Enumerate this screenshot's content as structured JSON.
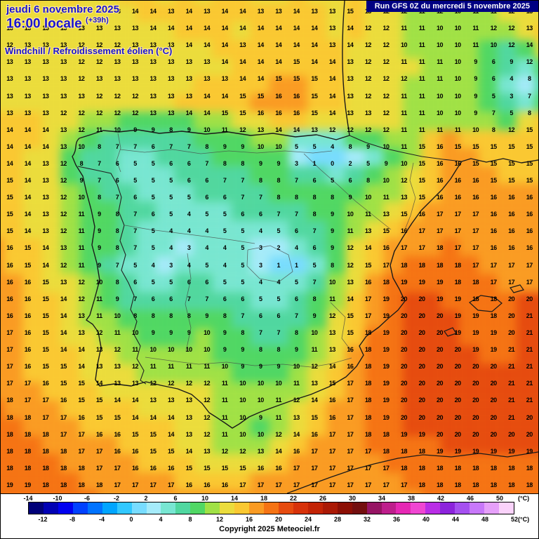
{
  "header": {
    "date_line": "jeudi 6 novembre 2025",
    "time_line": "16:00 locale",
    "run_offset": "(+39h)",
    "parameter_line": "Windchill / Refroidissement éolien (°C)",
    "run_info": "Run GFS 0Z du mercredi 5 novembre 2025"
  },
  "footer": {
    "copyright": "Copyright 2025 Meteociel.fr"
  },
  "colors": {
    "title_blue": "#1a14d2",
    "run_banner_bg": "#000082",
    "run_banner_text": "#ffffff"
  },
  "scale": {
    "min": -14,
    "max": 52,
    "step": 2,
    "unit": "(°C)",
    "top_labels": [
      "-14",
      "-10",
      "-6",
      "-2",
      "2",
      "6",
      "10",
      "14",
      "18",
      "22",
      "26",
      "30",
      "34",
      "38",
      "42",
      "46",
      "50"
    ],
    "bottom_labels": [
      "-12",
      "-8",
      "-4",
      "0",
      "4",
      "8",
      "12",
      "16",
      "20",
      "24",
      "28",
      "32",
      "36",
      "40",
      "44",
      "48",
      "52"
    ],
    "colors": [
      "#000078",
      "#0000b4",
      "#0000f0",
      "#0041ff",
      "#0073ff",
      "#00a5ff",
      "#32c8ff",
      "#78dcff",
      "#a5ebfa",
      "#78e6d2",
      "#50d7a0",
      "#50d764",
      "#a0e146",
      "#ebdc3c",
      "#fac832",
      "#fa9b23",
      "#f57314",
      "#e64b0f",
      "#d7320a",
      "#c32305",
      "#aa1905",
      "#8c0f05",
      "#730f0f",
      "#961464",
      "#be1e8c",
      "#e628b4",
      "#f046d2",
      "#b92de6",
      "#8c23dc",
      "#a550f0",
      "#c878fa",
      "#e6a0fa",
      "#fad2fa"
    ]
  },
  "grid": {
    "cols": 30,
    "rows": 29,
    "values": [
      "13 13 14 13 14 13 13 14 14 13 14 13 14 14 13 13 14 13 13 15 13 12 12 11 12 10 11 11 12 13",
      "13 13 13 13 13 13 13 13 14 14 14 14 14 14 14 14 14 14 13 14 12 12 11 11 10 10 11 12 12 13",
      "12 13 13 13 12 12 12 13 13 13 14 14 14 13 14 14 14 14 13 14 12 12 10 11 10 10 11 10 12 14",
      "13 13 13 13 12 12 13 13 13 13 13 13 14 14 14 14 15 14 14 13 12 12 11 11 11 10 9 6 9 12",
      "13 13 13 13 12 13 13 13 13 13 13 13 13 14 14 15 15 15 14 13 12 12 12 11 11 10 9 6 4 8",
      "13 13 13 13 13 12 12 12 13 13 13 14 14 15 15 16 16 15 14 13 12 12 11 11 10 10 9 5 3 7",
      "13 13 13 12 12 12 12 12 13 13 14 14 15 15 16 16 16 15 14 13 13 12 11 11 10 10 9 7 5 8",
      "14 14 14 13 12 11 10 9 9 8 9 10 11 12 13 14 14 13 12 12 12 12 11 11 11 11 10 8 12 15",
      "14 14 14 13 10 8 7 7 6 7 7 8 9 9 10 10 5 5 4 8 9 10 11 15 16 15 15 15 15 15",
      "14 14 13 12 8 7 6 5 5 6 6 7 8 8 9 9 3 1 0 2 5 9 10 15 16 16 15 15 15 15",
      "15 14 13 12 9 7 6 5 5 5 6 6 7 7 8 8 7 6 5 6 8 10 12 15 16 16 16 15 15 15",
      "15 14 13 12 10 8 7 6 5 5 5 6 6 7 7 8 8 8 8 9 10 11 13 15 16 16 16 16 16 16",
      "15 14 13 12 11 9 8 7 6 5 4 5 5 6 6 7 7 8 9 10 11 13 15 16 17 17 17 16 16 16",
      "15 14 13 12 11 9 8 7 5 4 4 4 5 5 4 5 6 7 9 11 13 15 16 17 17 17 17 16 16 16",
      "16 15 14 13 11 9 8 7 5 4 3 4 4 5 3 2 4 6 9 12 14 16 17 17 18 17 17 16 16 16",
      "16 15 14 12 11 9 7 5 4 3 4 5 4 5 3 1 1 5 8 12 15 17 18 18 18 18 17 17 17 17",
      "16 16 15 13 12 10 8 6 5 5 6 6 5 5 4 4 5 7 10 13 16 18 19 19 19 18 18 17 17 17",
      "16 16 15 14 12 11 9 7 6 6 7 7 6 6 5 5 6 8 11 14 17 19 20 20 19 19 18 18 20 20",
      "16 16 15 14 13 11 10 8 8 8 8 9 8 7 6 6 7 9 12 15 17 19 20 20 20 19 19 18 20 21",
      "17 16 15 14 13 12 11 10 9 9 9 10 9 8 7 7 8 10 13 15 18 19 20 20 20 19 19 19 20 21",
      "17 16 15 14 14 13 12 11 10 10 10 10 9 9 8 8 9 11 13 16 18 19 20 20 20 20 19 19 21 21",
      "17 16 15 15 14 13 13 12 11 11 11 11 10 9 9 9 10 12 14 16 18 19 20 20 20 20 20 20 21 21",
      "17 17 16 15 15 14 13 13 12 12 12 12 11 10 10 10 11 13 15 17 18 19 20 20 20 20 20 20 21 21",
      "18 17 17 16 15 15 14 14 13 13 13 12 11 10 10 11 12 14 16 17 18 19 20 20 20 20 20 20 21 21",
      "18 18 17 17 16 15 15 14 14 14 13 12 11 10 9 11 13 15 16 17 18 19 20 20 20 20 20 20 21 20",
      "18 18 18 17 17 16 16 15 15 14 13 12 11 10 10 12 14 16 17 17 18 18 19 19 20 20 20 20 20 20",
      "18 18 18 18 17 17 16 16 15 15 14 13 12 12 13 14 16 17 17 17 17 18 18 18 19 19 19 19 19 19",
      "18 18 18 18 18 17 17 16 16 16 15 15 15 15 16 16 17 17 17 17 17 17 18 18 18 18 18 18 18 18",
      "19 19 18 18 18 18 17 17 17 17 16 16 16 17 17 17 17 17 17 17 17 17 17 18 18 18 18 18 18 18"
    ]
  }
}
